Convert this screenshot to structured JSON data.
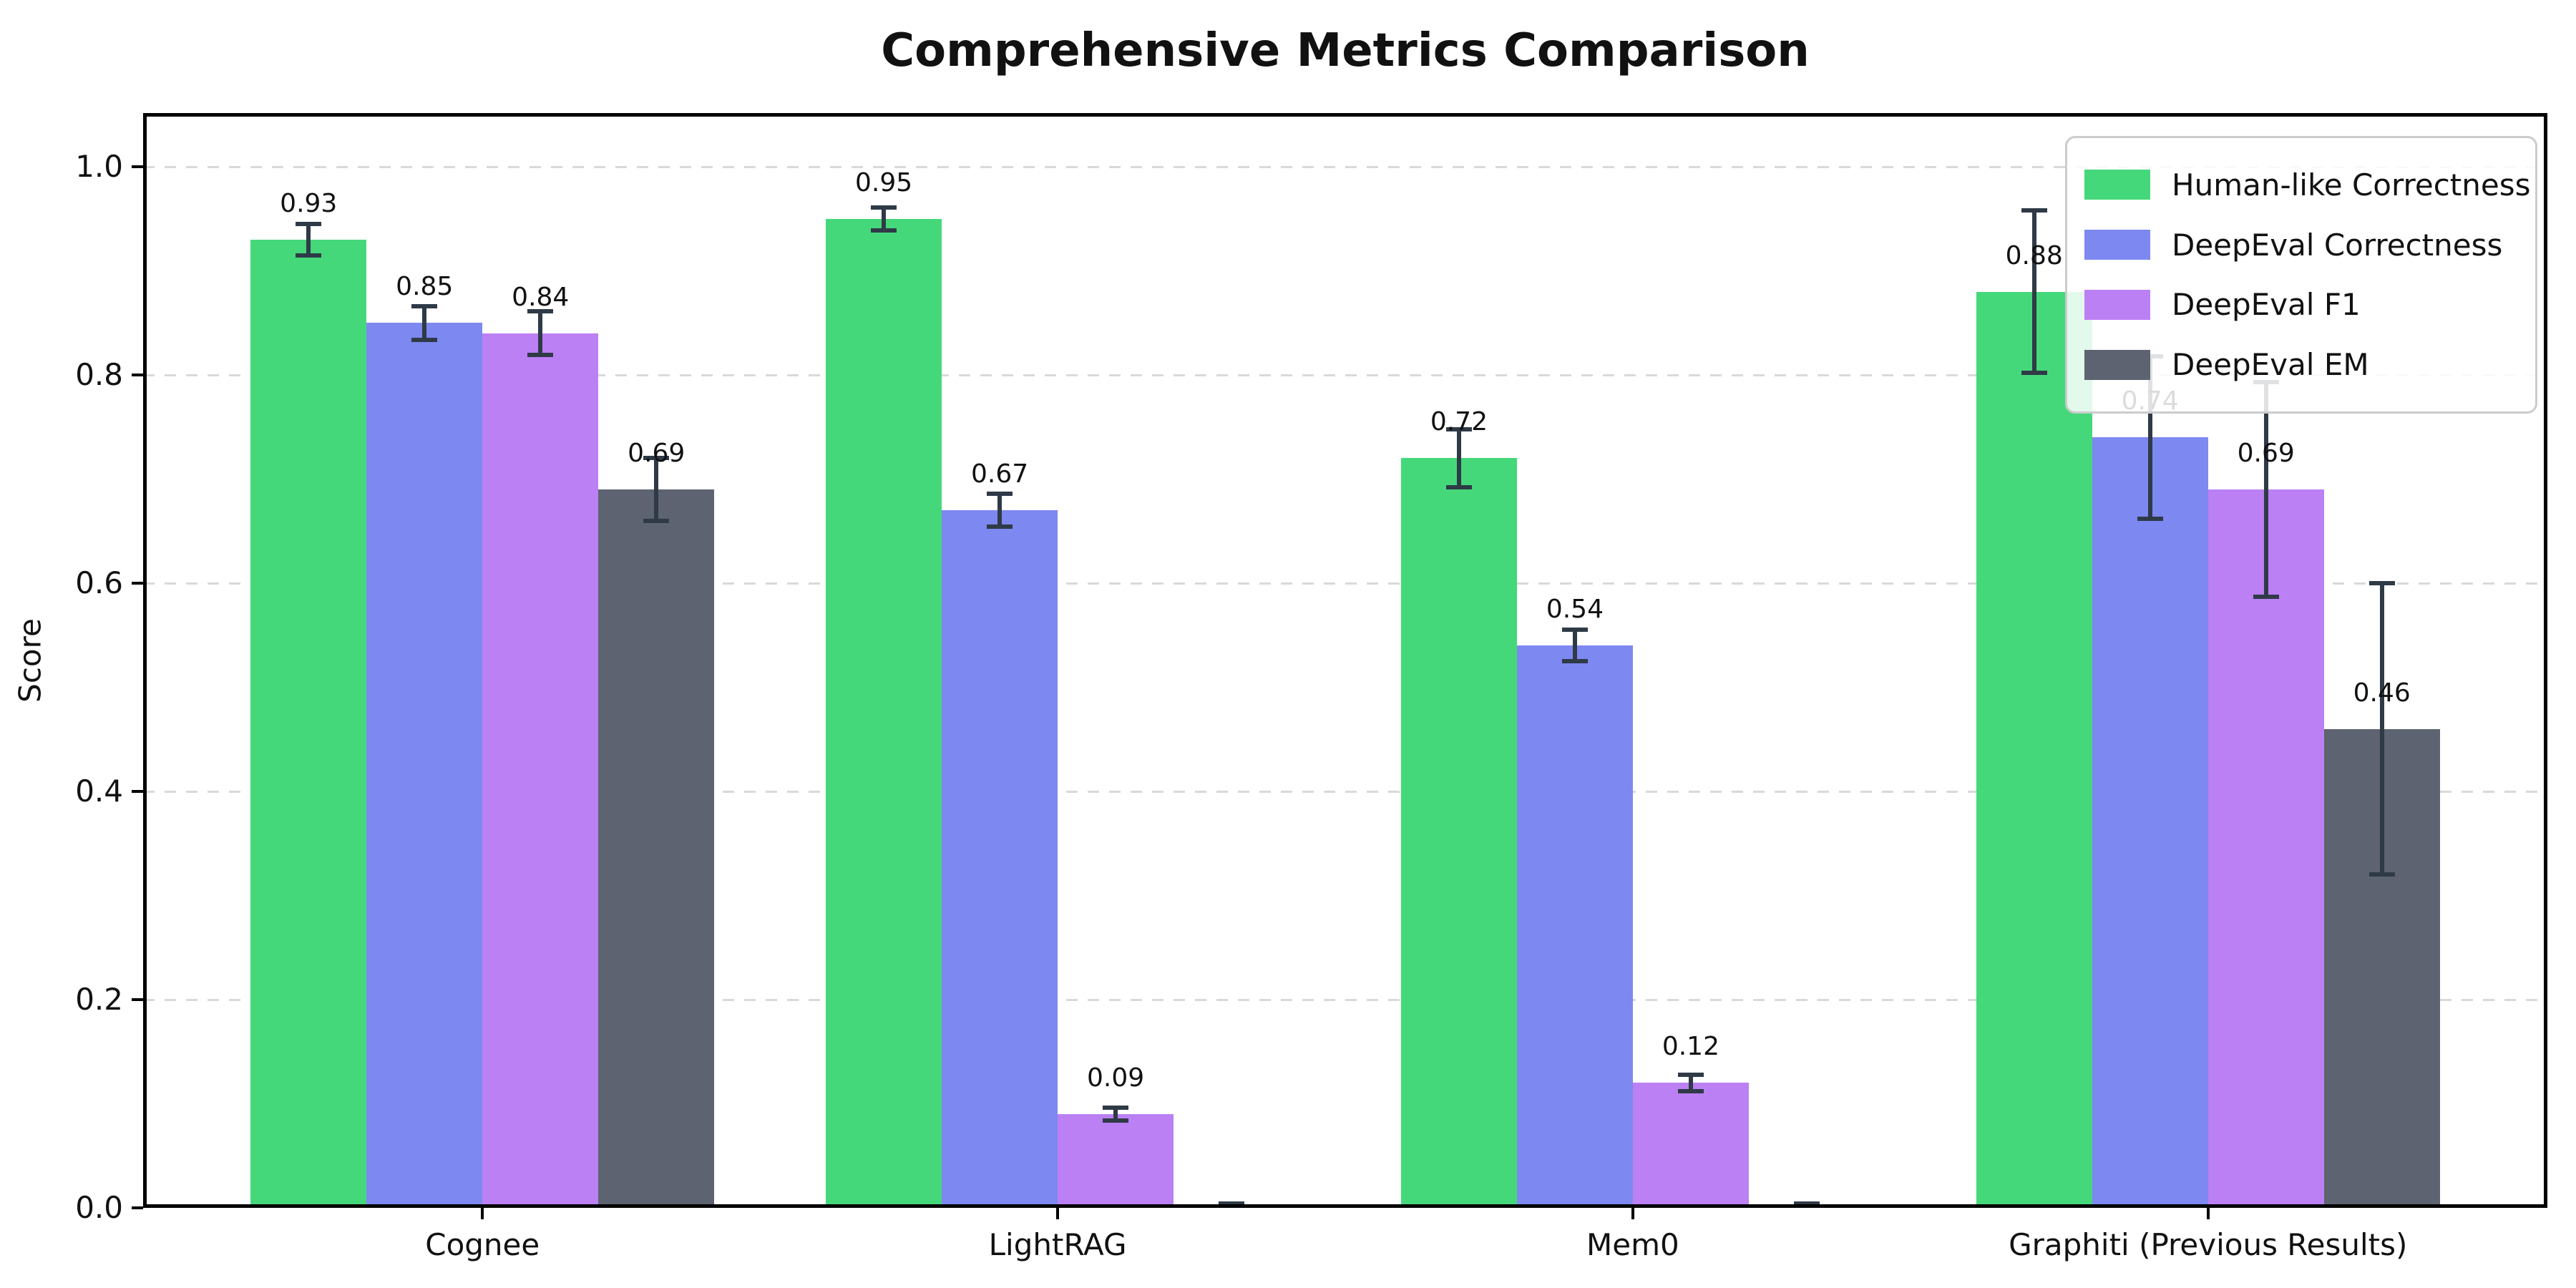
{
  "title": "Comprehensive Metrics Comparison",
  "chart_data": {
    "type": "bar",
    "title": "Comprehensive Metrics Comparison",
    "xlabel": "",
    "ylabel": "Score",
    "ylim": [
      0,
      1.05
    ],
    "yticks": [
      "0.0",
      "0.2",
      "0.4",
      "0.6",
      "0.8",
      "1.0"
    ],
    "grid": "horizontal-dashed",
    "legend_position": "upper-right",
    "background": "#ffffff",
    "gridline_color": "#d9d9d9",
    "error_bar_color": "#2f3a47",
    "categories": [
      "Cognee",
      "LightRAG",
      "Mem0",
      "Graphiti (Previous Results)"
    ],
    "series": [
      {
        "name": "Human-like Correctness",
        "color": "#45d87b",
        "values": [
          0.93,
          0.95,
          0.72,
          0.88
        ],
        "errors": [
          0.015,
          0.011,
          0.028,
          0.078
        ]
      },
      {
        "name": "DeepEval Correctness",
        "color": "#7d88f0",
        "values": [
          0.85,
          0.67,
          0.54,
          0.74
        ],
        "errors": [
          0.016,
          0.016,
          0.015,
          0.078
        ]
      },
      {
        "name": "DeepEval F1",
        "color": "#bb80f3",
        "values": [
          0.84,
          0.09,
          0.12,
          0.69
        ],
        "errors": [
          0.021,
          0.006,
          0.008,
          0.103
        ]
      },
      {
        "name": "DeepEval EM",
        "color": "#5d6370",
        "values": [
          0.69,
          0.0,
          0.0,
          0.46
        ],
        "errors": [
          0.03,
          0.004,
          0.004,
          0.14
        ]
      }
    ],
    "bar_value_labels": [
      "0.93",
      "0.85",
      "0.84",
      "0.69",
      "0.95",
      "0.67",
      "0.09",
      "0.72",
      "0.54",
      "0.12",
      "0.88",
      "0.74",
      "0.69",
      "0.46"
    ]
  }
}
